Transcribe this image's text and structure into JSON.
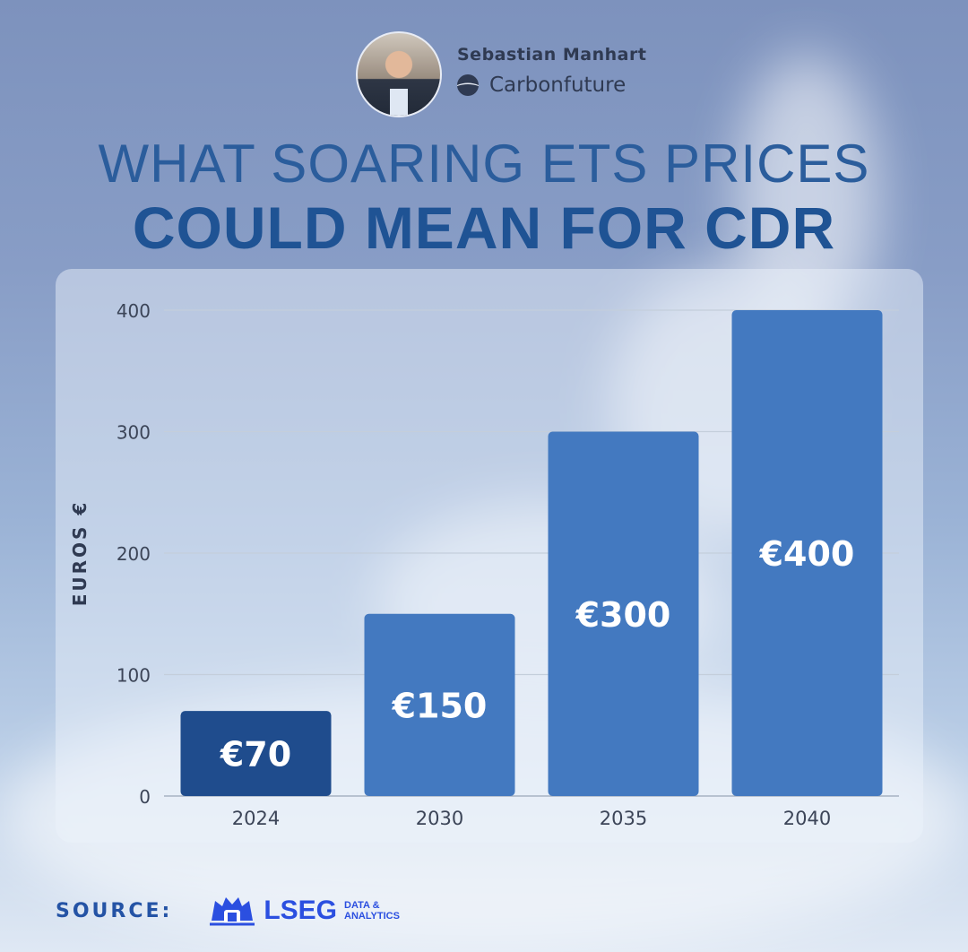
{
  "author": {
    "name": "Sebastian Manhart",
    "company": "Carbonfuture"
  },
  "title": {
    "line1": "WHAT SOARING ETS PRICES",
    "line2": "COULD MEAN FOR CDR"
  },
  "chart_data": {
    "type": "bar",
    "categories": [
      "2024",
      "2030",
      "2035",
      "2040"
    ],
    "values": [
      70,
      150,
      300,
      400
    ],
    "data_labels": [
      "€70",
      "€150",
      "€300",
      "€400"
    ],
    "ylabel": "EUROS €",
    "xlabel": "",
    "ylim": [
      0,
      400
    ],
    "yticks": [
      0,
      100,
      200,
      300,
      400
    ],
    "grid": true,
    "colors": {
      "highlight": "#1f4c8d",
      "bar": "#4379c0",
      "label": "#ffffff"
    }
  },
  "footer": {
    "source_label": "SOURCE:",
    "logo_name": "LSEG",
    "logo_sub_line1": "DATA &",
    "logo_sub_line2": "ANALYTICS"
  }
}
